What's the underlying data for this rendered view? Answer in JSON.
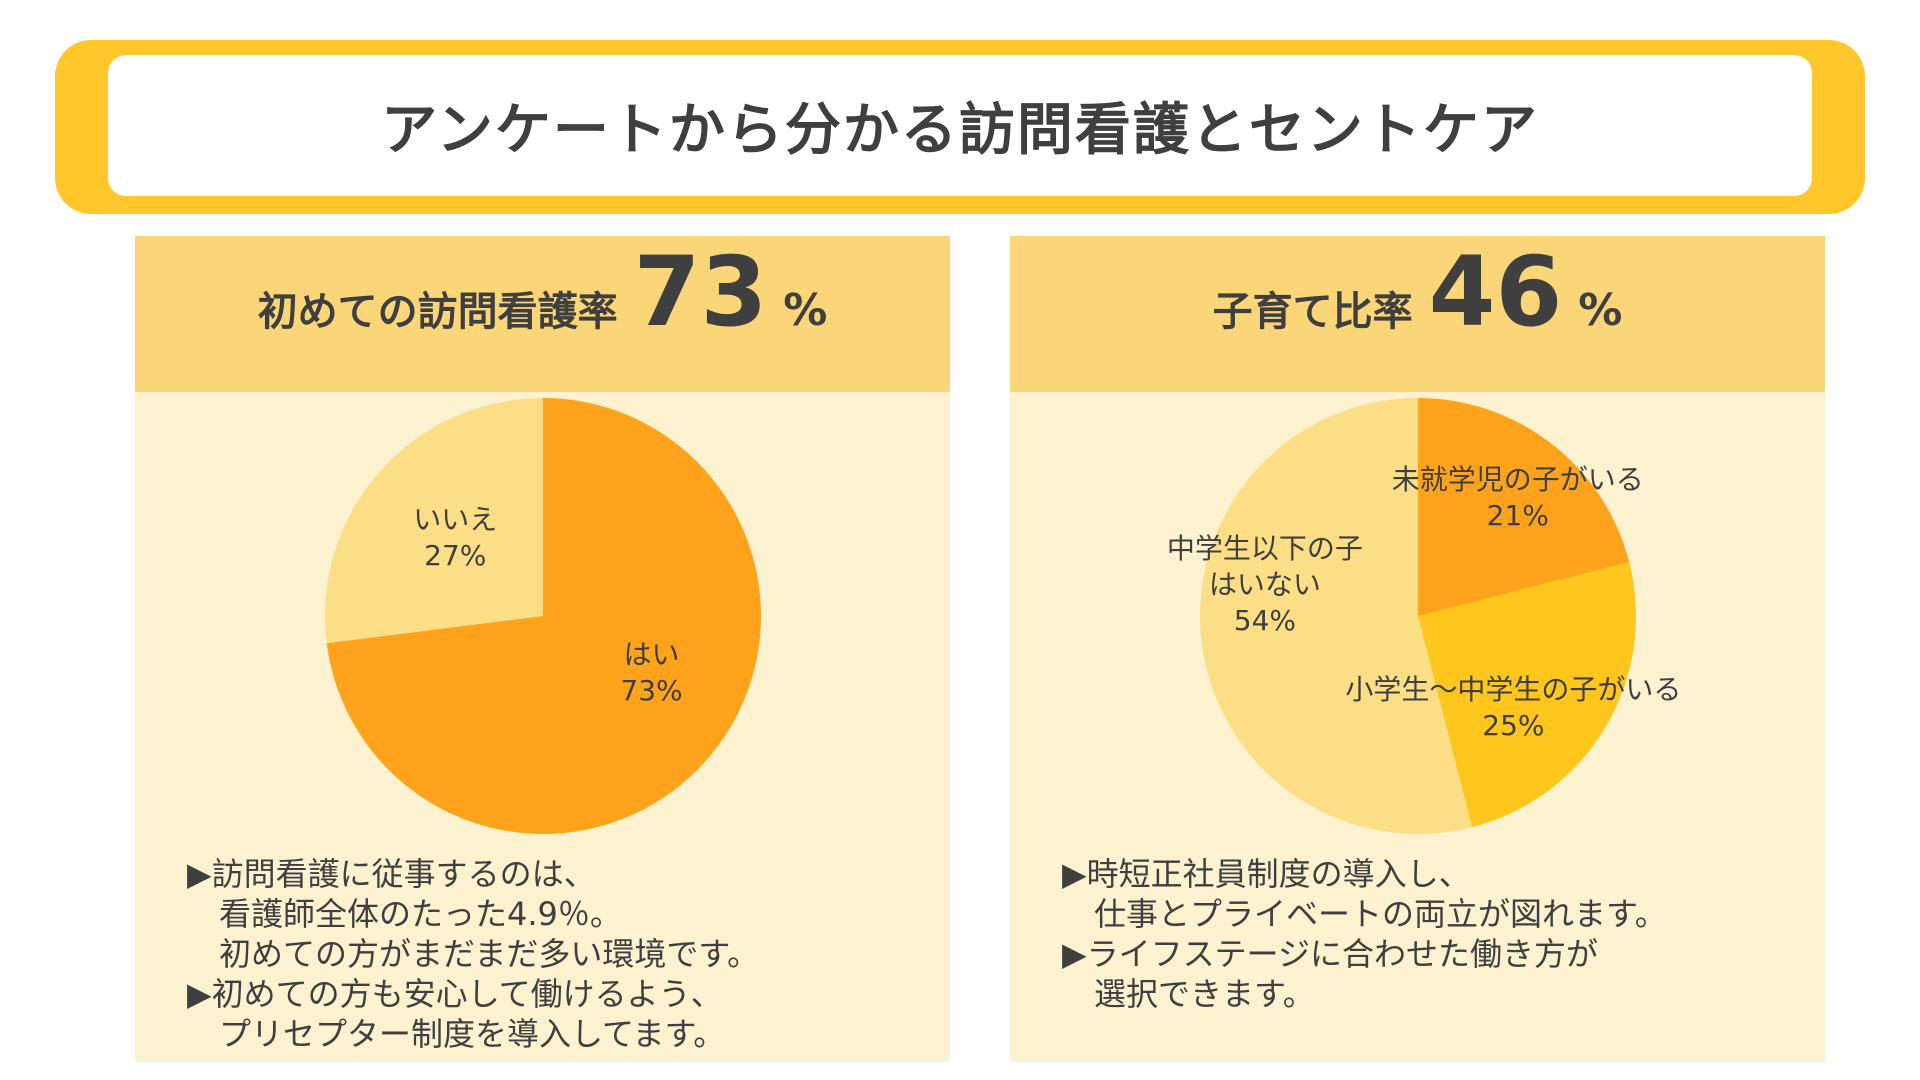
{
  "title": "アンケートから分かる訪問看護とセントケア",
  "colors": {
    "frame-yellow": "#FFC72C",
    "header-band": "#FBD679",
    "panel-body": "#FDF2D0",
    "slice-orange": "#FFA31C",
    "slice-amber": "#FFC61E",
    "slice-light": "#FBDE85",
    "text-dark": "#3F3F3F"
  },
  "chart_data": [
    {
      "type": "pie",
      "title": "初めての訪問看護率 73%",
      "header": {
        "label": "初めての訪問看護率",
        "value": "73",
        "unit": "%"
      },
      "direction": "clockwise",
      "start_angle_deg": 0,
      "legend": "none",
      "slices": [
        {
          "label": "はい",
          "value": 73,
          "pct_label": "73%",
          "color": "#FFA31C"
        },
        {
          "label": "いいえ",
          "value": 27,
          "pct_label": "27%",
          "color": "#FBDE85"
        }
      ],
      "notes": [
        "▶訪問看護に従事するのは、",
        "　看護師全体のたった4.9％。",
        "　初めての方がまだまだ多い環境です。",
        "▶初めての方も安心して働けるよう、",
        "　プリセプター制度を導入してます。"
      ]
    },
    {
      "type": "pie",
      "title": "子育て比率 46%",
      "header": {
        "label": "子育て比率",
        "value": "46",
        "unit": "%"
      },
      "direction": "clockwise",
      "start_angle_deg": 0,
      "legend": "none",
      "slices": [
        {
          "label": "未就学児の子がいる",
          "value": 21,
          "pct_label": "21%",
          "color": "#FFA31C"
        },
        {
          "label": "小学生～中学生の子がいる",
          "value": 25,
          "pct_label": "25%",
          "color": "#FFC61E"
        },
        {
          "label": "中学生以下の子はいない",
          "value": 54,
          "pct_label": "54%",
          "color": "#FBDE85"
        }
      ],
      "notes": [
        "▶時短正社員制度の導入し、",
        "　仕事とプライベートの両立が図れます。",
        "▶ライフステージに合わせた働き方が",
        "　選択できます。"
      ]
    }
  ]
}
